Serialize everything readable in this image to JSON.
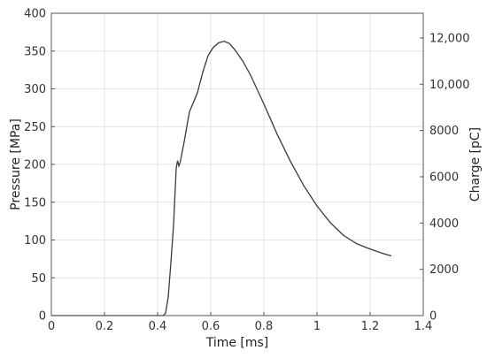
{
  "chart_data": {
    "type": "line",
    "xlabel": "Time [ms]",
    "ylabel": "Pressure [MPa]",
    "y2label": "Charge [pC]",
    "xlim": [
      0,
      1.4
    ],
    "ylim": [
      0,
      400
    ],
    "y2lim": [
      0,
      13067
    ],
    "grid": true,
    "xticks": [
      "0",
      "0.2",
      "0.4",
      "0.6",
      "0.8",
      "1",
      "1.2",
      "1.4"
    ],
    "yticks": [
      "0",
      "50",
      "100",
      "150",
      "200",
      "250",
      "300",
      "350",
      "400"
    ],
    "y2ticks": [
      "0",
      "2000",
      "4000",
      "6000",
      "8000",
      "10,000",
      "12,000"
    ],
    "xtick_values": [
      0,
      0.2,
      0.4,
      0.6,
      0.8,
      1,
      1.2,
      1.4
    ],
    "ytick_values": [
      0,
      50,
      100,
      150,
      200,
      250,
      300,
      350,
      400
    ],
    "y2tick_values": [
      0,
      2000,
      4000,
      6000,
      8000,
      10000,
      12000
    ],
    "series": [
      {
        "color": "#3a3a3a",
        "x": [
          0,
          0.42,
          0.43,
          0.44,
          0.45,
          0.46,
          0.47,
          0.475,
          0.48,
          0.485,
          0.49,
          0.5,
          0.51,
          0.52,
          0.53,
          0.55,
          0.57,
          0.59,
          0.61,
          0.63,
          0.65,
          0.67,
          0.69,
          0.72,
          0.75,
          0.8,
          0.85,
          0.9,
          0.95,
          1.0,
          1.05,
          1.1,
          1.15,
          1.2,
          1.25,
          1.27,
          1.28
        ],
        "values": [
          0,
          0,
          3,
          25,
          70,
          120,
          195,
          205,
          198,
          203,
          212,
          230,
          250,
          270,
          278,
          295,
          322,
          344,
          355,
          361,
          363,
          360,
          352,
          337,
          318,
          280,
          240,
          204,
          172,
          145,
          123,
          106,
          95,
          88,
          82,
          80,
          79
        ]
      }
    ]
  }
}
